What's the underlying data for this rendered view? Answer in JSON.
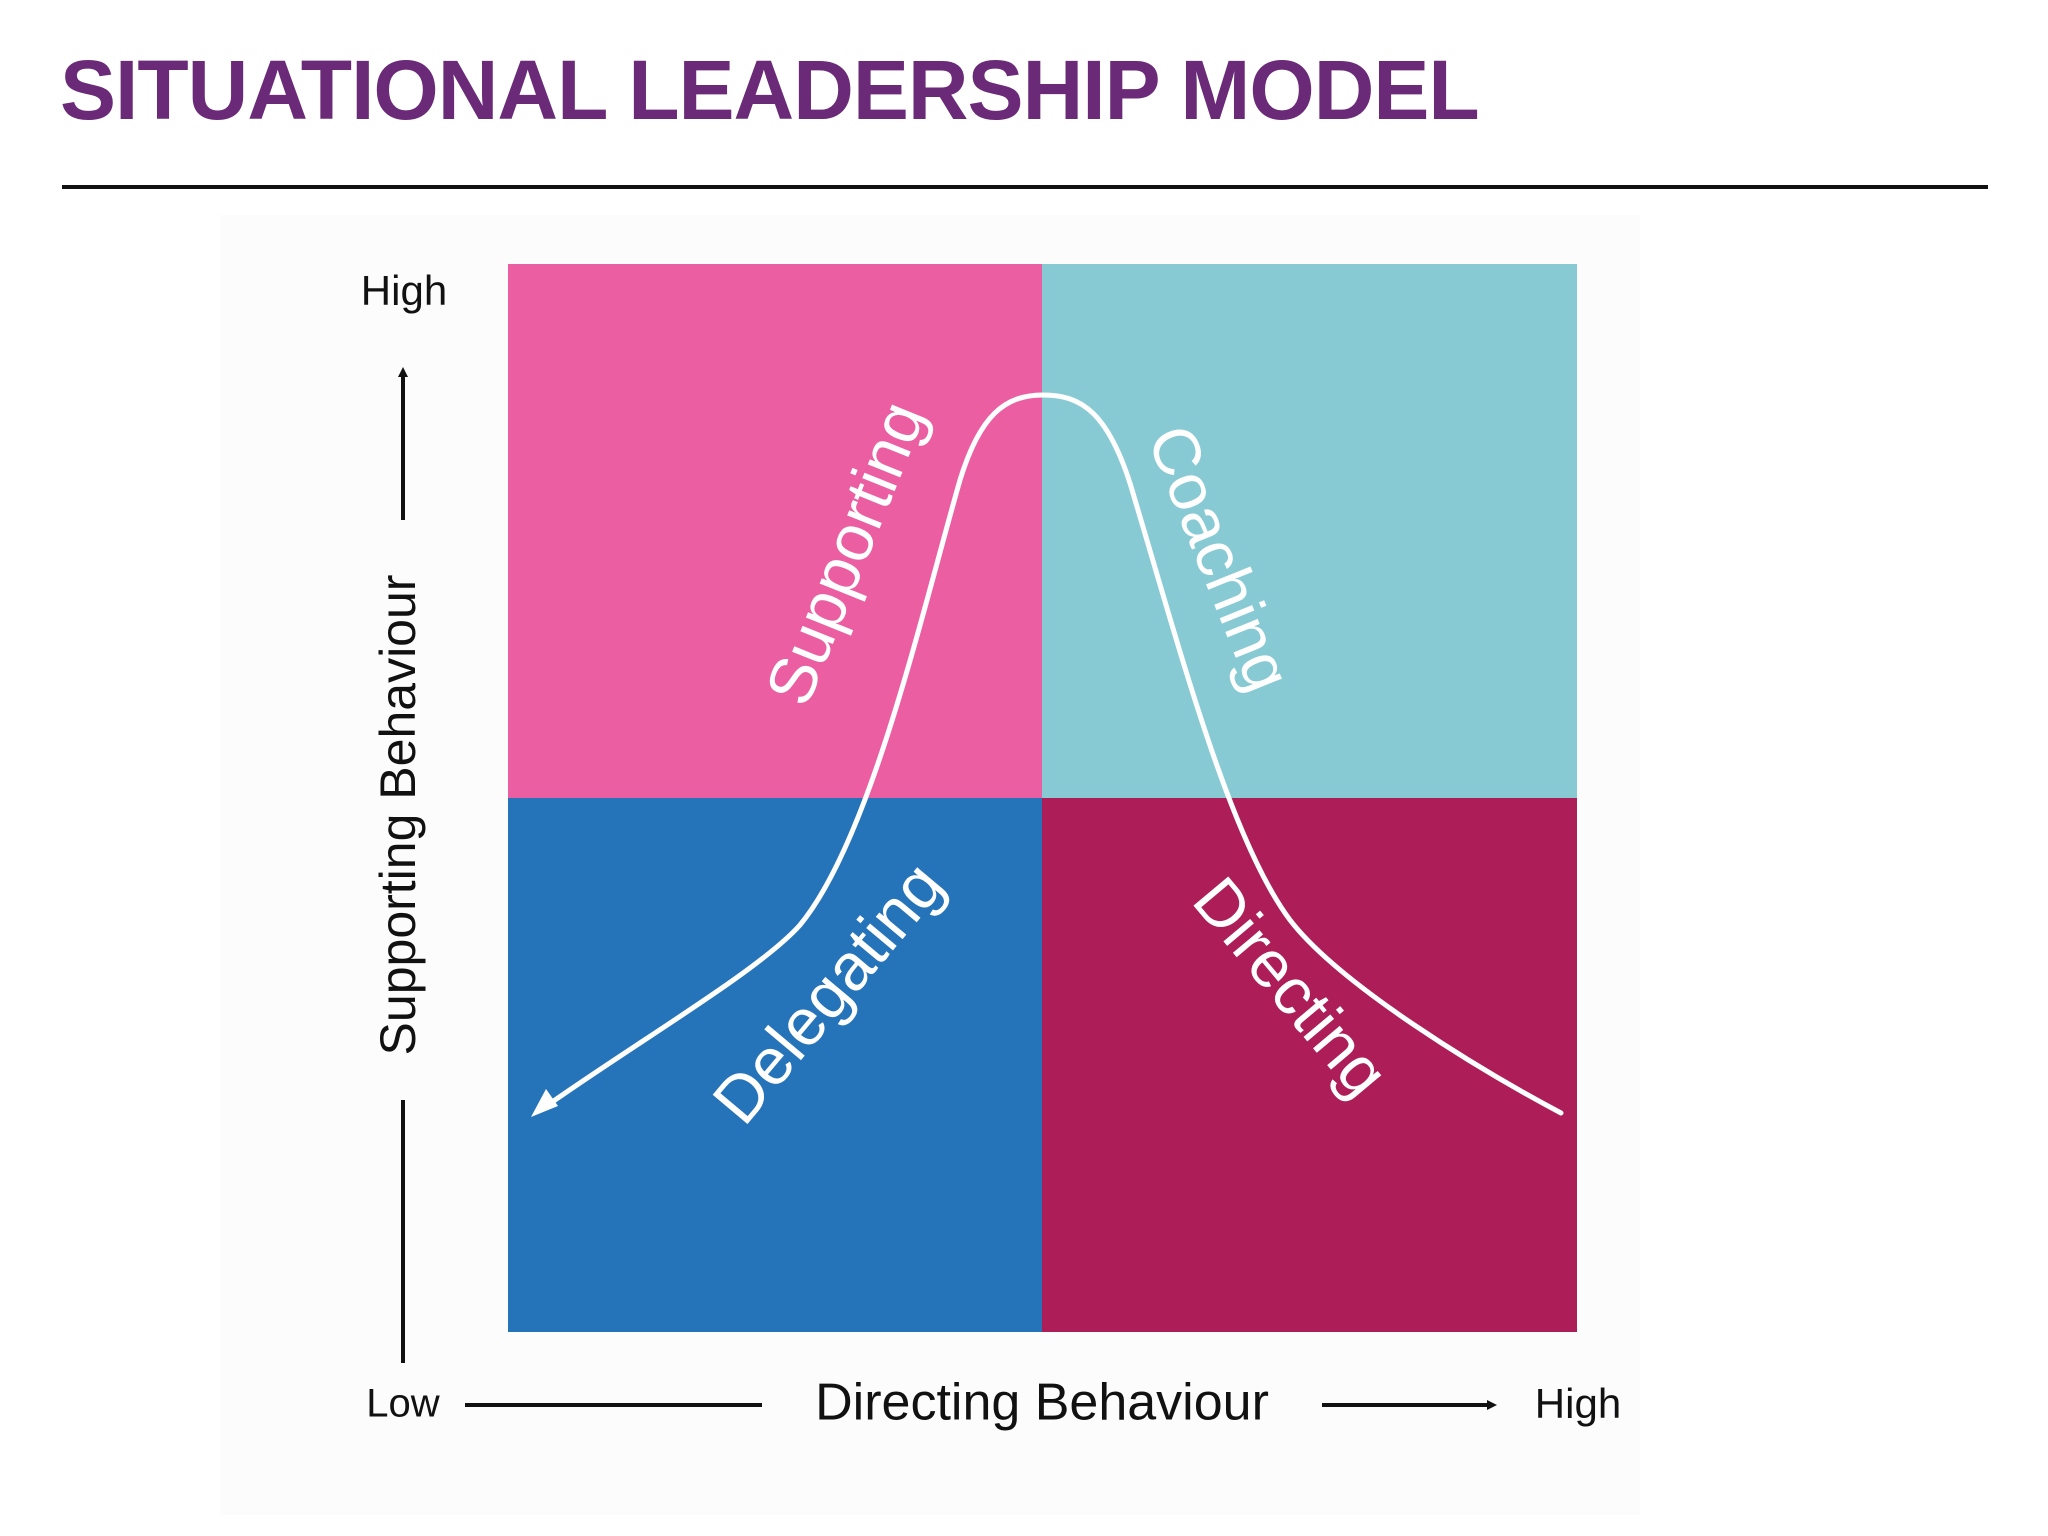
{
  "title": "SITUATIONAL LEADERSHIP MODEL",
  "colors": {
    "title": "#6a2a78",
    "rule": "#111111",
    "supporting": "#eb5fa2",
    "coaching": "#87cad4",
    "delegating": "#2574ba",
    "directing": "#ad1d57",
    "curve": "#ffffff",
    "axis": "#111111",
    "background": "#fcfcfd"
  },
  "quadrants": {
    "top_left": "Supporting",
    "top_right": "Coaching",
    "bottom_left": "Delegating",
    "bottom_right": "Directing"
  },
  "axes": {
    "y_label": "Supporting Behaviour",
    "y_high": "High",
    "x_label": "Directing Behaviour",
    "x_high": "High",
    "origin_low": "Low"
  }
}
